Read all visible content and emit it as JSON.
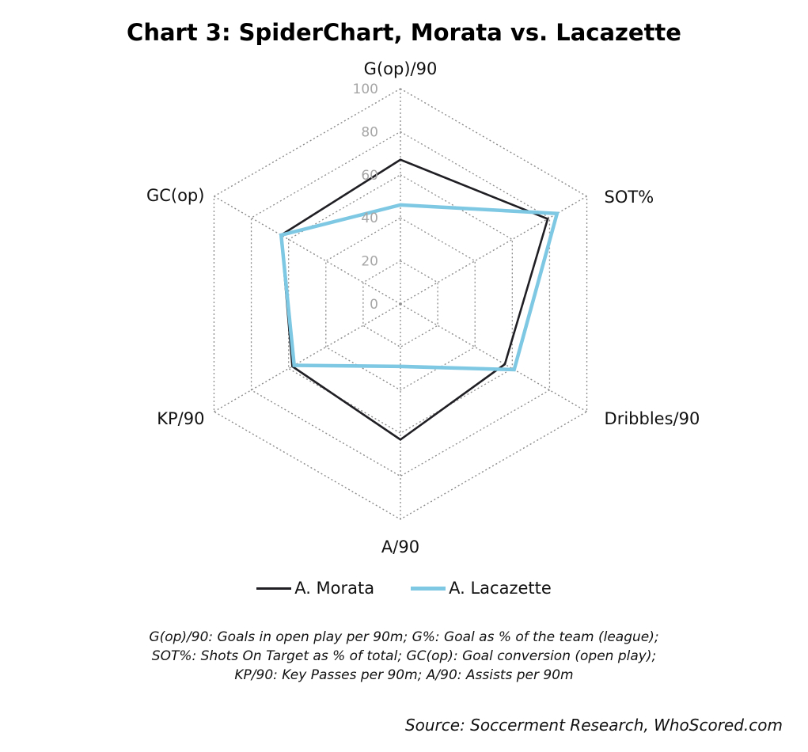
{
  "chart_data": {
    "type": "radar",
    "title": "Chart 3: SpiderChart, Morata vs. Lacazette",
    "axes": [
      "G(op)/90",
      "SOT%",
      "Dribbles/90",
      "A/90",
      "KP/90",
      "GC(op)"
    ],
    "rlim": [
      0,
      100
    ],
    "ticks": [
      "0",
      "20",
      "40",
      "60",
      "80",
      "100"
    ],
    "grid": true,
    "legend_position": "bottom",
    "series": [
      {
        "name": "A. Morata",
        "values": [
          67,
          79,
          56,
          63,
          58,
          64
        ],
        "color": "#1f1f24"
      },
      {
        "name": "A. Lacazette",
        "values": [
          46,
          84,
          61,
          29,
          57,
          64
        ],
        "color": "#7ec8e3"
      }
    ]
  },
  "footnote": {
    "line1": "G(op)/90: Goals in open play per 90m; G%: Goal as % of the team (league);",
    "line2": "SOT%: Shots On Target as % of total; GC(op): Goal conversion (open play);",
    "line3": "KP/90: Key Passes per 90m; A/90: Assists per 90m"
  },
  "source": "Source: Soccerment Research, WhoScored.com"
}
